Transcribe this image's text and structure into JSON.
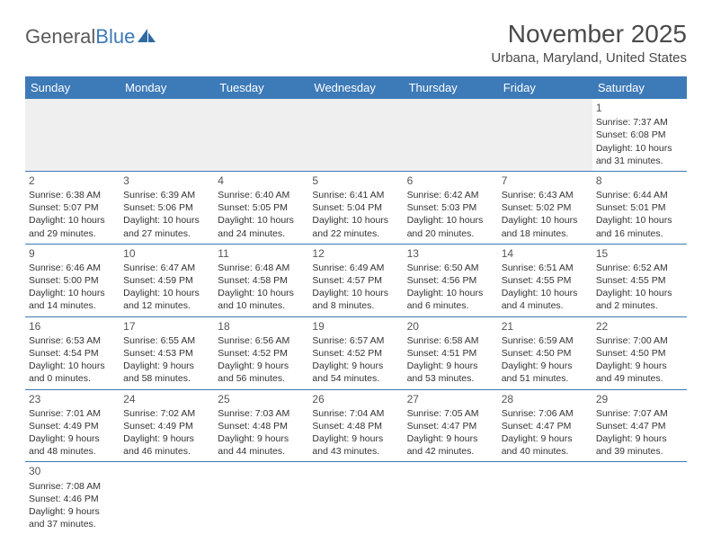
{
  "brand": {
    "part1": "General",
    "part2": "Blue"
  },
  "title": "November 2025",
  "subtitle": "Urbana, Maryland, United States",
  "colors": {
    "header_bg": "#3d7ab8",
    "header_fg": "#ffffff",
    "rule": "#3d7ab8",
    "empty_bg": "#efefef",
    "text": "#333333"
  },
  "weekdays": [
    "Sunday",
    "Monday",
    "Tuesday",
    "Wednesday",
    "Thursday",
    "Friday",
    "Saturday"
  ],
  "lead_blanks": 6,
  "days": [
    {
      "n": "1",
      "sunrise": "Sunrise: 7:37 AM",
      "sunset": "Sunset: 6:08 PM",
      "day1": "Daylight: 10 hours",
      "day2": "and 31 minutes."
    },
    {
      "n": "2",
      "sunrise": "Sunrise: 6:38 AM",
      "sunset": "Sunset: 5:07 PM",
      "day1": "Daylight: 10 hours",
      "day2": "and 29 minutes."
    },
    {
      "n": "3",
      "sunrise": "Sunrise: 6:39 AM",
      "sunset": "Sunset: 5:06 PM",
      "day1": "Daylight: 10 hours",
      "day2": "and 27 minutes."
    },
    {
      "n": "4",
      "sunrise": "Sunrise: 6:40 AM",
      "sunset": "Sunset: 5:05 PM",
      "day1": "Daylight: 10 hours",
      "day2": "and 24 minutes."
    },
    {
      "n": "5",
      "sunrise": "Sunrise: 6:41 AM",
      "sunset": "Sunset: 5:04 PM",
      "day1": "Daylight: 10 hours",
      "day2": "and 22 minutes."
    },
    {
      "n": "6",
      "sunrise": "Sunrise: 6:42 AM",
      "sunset": "Sunset: 5:03 PM",
      "day1": "Daylight: 10 hours",
      "day2": "and 20 minutes."
    },
    {
      "n": "7",
      "sunrise": "Sunrise: 6:43 AM",
      "sunset": "Sunset: 5:02 PM",
      "day1": "Daylight: 10 hours",
      "day2": "and 18 minutes."
    },
    {
      "n": "8",
      "sunrise": "Sunrise: 6:44 AM",
      "sunset": "Sunset: 5:01 PM",
      "day1": "Daylight: 10 hours",
      "day2": "and 16 minutes."
    },
    {
      "n": "9",
      "sunrise": "Sunrise: 6:46 AM",
      "sunset": "Sunset: 5:00 PM",
      "day1": "Daylight: 10 hours",
      "day2": "and 14 minutes."
    },
    {
      "n": "10",
      "sunrise": "Sunrise: 6:47 AM",
      "sunset": "Sunset: 4:59 PM",
      "day1": "Daylight: 10 hours",
      "day2": "and 12 minutes."
    },
    {
      "n": "11",
      "sunrise": "Sunrise: 6:48 AM",
      "sunset": "Sunset: 4:58 PM",
      "day1": "Daylight: 10 hours",
      "day2": "and 10 minutes."
    },
    {
      "n": "12",
      "sunrise": "Sunrise: 6:49 AM",
      "sunset": "Sunset: 4:57 PM",
      "day1": "Daylight: 10 hours",
      "day2": "and 8 minutes."
    },
    {
      "n": "13",
      "sunrise": "Sunrise: 6:50 AM",
      "sunset": "Sunset: 4:56 PM",
      "day1": "Daylight: 10 hours",
      "day2": "and 6 minutes."
    },
    {
      "n": "14",
      "sunrise": "Sunrise: 6:51 AM",
      "sunset": "Sunset: 4:55 PM",
      "day1": "Daylight: 10 hours",
      "day2": "and 4 minutes."
    },
    {
      "n": "15",
      "sunrise": "Sunrise: 6:52 AM",
      "sunset": "Sunset: 4:55 PM",
      "day1": "Daylight: 10 hours",
      "day2": "and 2 minutes."
    },
    {
      "n": "16",
      "sunrise": "Sunrise: 6:53 AM",
      "sunset": "Sunset: 4:54 PM",
      "day1": "Daylight: 10 hours",
      "day2": "and 0 minutes."
    },
    {
      "n": "17",
      "sunrise": "Sunrise: 6:55 AM",
      "sunset": "Sunset: 4:53 PM",
      "day1": "Daylight: 9 hours",
      "day2": "and 58 minutes."
    },
    {
      "n": "18",
      "sunrise": "Sunrise: 6:56 AM",
      "sunset": "Sunset: 4:52 PM",
      "day1": "Daylight: 9 hours",
      "day2": "and 56 minutes."
    },
    {
      "n": "19",
      "sunrise": "Sunrise: 6:57 AM",
      "sunset": "Sunset: 4:52 PM",
      "day1": "Daylight: 9 hours",
      "day2": "and 54 minutes."
    },
    {
      "n": "20",
      "sunrise": "Sunrise: 6:58 AM",
      "sunset": "Sunset: 4:51 PM",
      "day1": "Daylight: 9 hours",
      "day2": "and 53 minutes."
    },
    {
      "n": "21",
      "sunrise": "Sunrise: 6:59 AM",
      "sunset": "Sunset: 4:50 PM",
      "day1": "Daylight: 9 hours",
      "day2": "and 51 minutes."
    },
    {
      "n": "22",
      "sunrise": "Sunrise: 7:00 AM",
      "sunset": "Sunset: 4:50 PM",
      "day1": "Daylight: 9 hours",
      "day2": "and 49 minutes."
    },
    {
      "n": "23",
      "sunrise": "Sunrise: 7:01 AM",
      "sunset": "Sunset: 4:49 PM",
      "day1": "Daylight: 9 hours",
      "day2": "and 48 minutes."
    },
    {
      "n": "24",
      "sunrise": "Sunrise: 7:02 AM",
      "sunset": "Sunset: 4:49 PM",
      "day1": "Daylight: 9 hours",
      "day2": "and 46 minutes."
    },
    {
      "n": "25",
      "sunrise": "Sunrise: 7:03 AM",
      "sunset": "Sunset: 4:48 PM",
      "day1": "Daylight: 9 hours",
      "day2": "and 44 minutes."
    },
    {
      "n": "26",
      "sunrise": "Sunrise: 7:04 AM",
      "sunset": "Sunset: 4:48 PM",
      "day1": "Daylight: 9 hours",
      "day2": "and 43 minutes."
    },
    {
      "n": "27",
      "sunrise": "Sunrise: 7:05 AM",
      "sunset": "Sunset: 4:47 PM",
      "day1": "Daylight: 9 hours",
      "day2": "and 42 minutes."
    },
    {
      "n": "28",
      "sunrise": "Sunrise: 7:06 AM",
      "sunset": "Sunset: 4:47 PM",
      "day1": "Daylight: 9 hours",
      "day2": "and 40 minutes."
    },
    {
      "n": "29",
      "sunrise": "Sunrise: 7:07 AM",
      "sunset": "Sunset: 4:47 PM",
      "day1": "Daylight: 9 hours",
      "day2": "and 39 minutes."
    },
    {
      "n": "30",
      "sunrise": "Sunrise: 7:08 AM",
      "sunset": "Sunset: 4:46 PM",
      "day1": "Daylight: 9 hours",
      "day2": "and 37 minutes."
    }
  ]
}
